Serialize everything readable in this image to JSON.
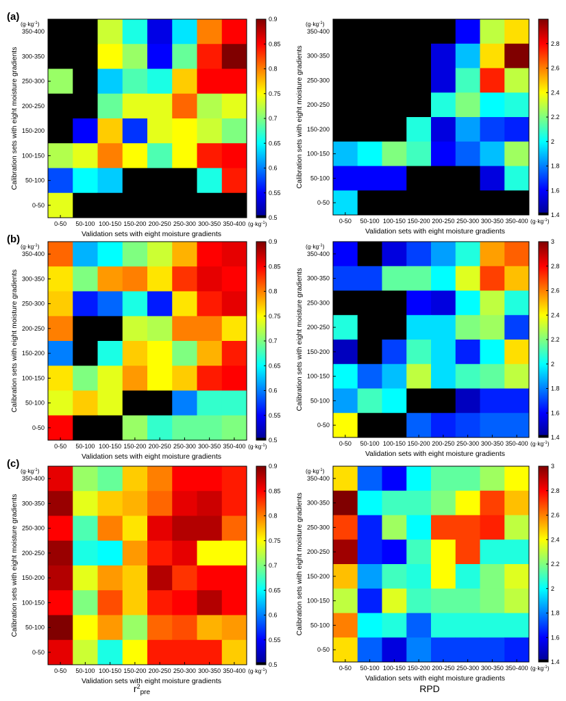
{
  "figure": {
    "unit": "(g·kg",
    "unit_sup": "-1",
    "unit_close": ")",
    "row_category_labels": [
      "350-400",
      "300-350",
      "250-300",
      "200-250",
      "150-200",
      "100-150",
      "50-100",
      "0-50"
    ],
    "col_category_labels": [
      "0-50",
      "50-100",
      "100-150",
      "150-200",
      "200-250",
      "250-300",
      "300-350",
      "350-400"
    ],
    "xlabel": "Validation sets with eight moisture gradients",
    "ylabel": "Calibration sets with eight moisture gradients",
    "bottom_label_left_base": "r",
    "bottom_label_left_sup": "2",
    "bottom_label_left_sub": "pre",
    "bottom_label_right": "RPD",
    "colormap": "jet",
    "masked_color": "#000000"
  },
  "chart_data": [
    {
      "panel_label": "(a)",
      "type": "heatmap",
      "metric": "r2pre",
      "colorbar_range": [
        0.5,
        0.9
      ],
      "colorbar_ticks": [
        "0.9",
        "0.85",
        "0.8",
        "0.75",
        "0.7",
        "0.65",
        "0.6",
        "0.55",
        "0.5"
      ],
      "values": [
        [
          null,
          null,
          0.73,
          0.66,
          0.54,
          0.64,
          0.8,
          0.85
        ],
        [
          null,
          null,
          0.75,
          0.71,
          0.55,
          0.69,
          0.84,
          0.9
        ],
        [
          0.71,
          null,
          0.63,
          0.68,
          0.66,
          0.77,
          0.85,
          0.85
        ],
        [
          null,
          null,
          0.69,
          0.74,
          0.74,
          0.81,
          0.72,
          0.74
        ],
        [
          null,
          0.55,
          0.77,
          0.57,
          0.74,
          0.75,
          0.73,
          0.7
        ],
        [
          0.72,
          0.74,
          0.8,
          0.75,
          0.68,
          0.75,
          0.84,
          0.85
        ],
        [
          0.58,
          0.65,
          0.63,
          null,
          null,
          null,
          0.66,
          0.84
        ],
        [
          0.74,
          null,
          null,
          null,
          null,
          null,
          null,
          null
        ]
      ]
    },
    {
      "panel_label": "",
      "type": "heatmap",
      "metric": "RPD",
      "colorbar_range": [
        1.4,
        3.0
      ],
      "colorbar_ticks": [
        "2.8",
        "2.6",
        "2.4",
        "2.2",
        "2",
        "1.8",
        "1.6",
        "1.4"
      ],
      "values": [
        [
          null,
          null,
          null,
          null,
          null,
          1.6,
          2.3,
          2.45
        ],
        [
          null,
          null,
          null,
          null,
          1.55,
          1.9,
          2.45,
          3.0
        ],
        [
          null,
          null,
          null,
          null,
          1.55,
          2.1,
          2.75,
          2.3
        ],
        [
          null,
          null,
          null,
          null,
          2.05,
          2.2,
          2.0,
          2.05
        ],
        [
          null,
          null,
          null,
          2.05,
          1.55,
          1.85,
          1.7,
          1.65
        ],
        [
          1.9,
          2.0,
          2.2,
          2.1,
          1.6,
          1.75,
          1.9,
          2.25
        ],
        [
          1.6,
          1.6,
          1.6,
          null,
          null,
          null,
          1.55,
          2.05
        ],
        [
          1.95,
          null,
          null,
          null,
          null,
          null,
          null,
          null
        ]
      ]
    },
    {
      "panel_label": "(b)",
      "type": "heatmap",
      "metric": "r2pre",
      "colorbar_range": [
        0.5,
        0.9
      ],
      "colorbar_ticks": [
        "0.9",
        "0.85",
        "0.8",
        "0.75",
        "0.7",
        "0.65",
        "0.6",
        "0.55",
        "0.5"
      ],
      "values": [
        [
          0.81,
          0.62,
          0.65,
          0.7,
          0.73,
          0.78,
          0.85,
          0.86
        ],
        [
          0.76,
          0.7,
          0.79,
          0.8,
          0.76,
          0.83,
          0.86,
          0.85
        ],
        [
          0.77,
          0.56,
          0.59,
          0.66,
          0.56,
          0.76,
          0.84,
          0.86
        ],
        [
          0.8,
          null,
          null,
          0.73,
          0.72,
          0.8,
          0.8,
          0.76
        ],
        [
          0.6,
          null,
          0.66,
          0.77,
          0.75,
          0.7,
          0.78,
          0.84
        ],
        [
          0.76,
          0.7,
          0.74,
          0.79,
          0.75,
          0.77,
          0.84,
          0.85
        ],
        [
          0.74,
          0.77,
          0.74,
          null,
          null,
          0.6,
          0.67,
          0.67
        ],
        [
          0.85,
          null,
          null,
          0.71,
          0.67,
          0.69,
          0.69,
          0.7
        ]
      ]
    },
    {
      "panel_label": "",
      "type": "heatmap",
      "metric": "RPD",
      "colorbar_range": [
        1.4,
        3.0
      ],
      "colorbar_ticks": [
        "3",
        "2.8",
        "2.6",
        "2.4",
        "2.2",
        "2",
        "1.8",
        "1.6",
        "1.4"
      ],
      "values": [
        [
          1.6,
          null,
          1.55,
          1.7,
          1.85,
          2.05,
          2.55,
          2.65
        ],
        [
          1.7,
          1.7,
          2.15,
          2.15,
          2.0,
          2.35,
          2.7,
          2.5
        ],
        [
          null,
          null,
          null,
          1.6,
          1.55,
          2.0,
          2.3,
          2.05
        ],
        [
          2.05,
          null,
          null,
          1.95,
          1.95,
          2.2,
          2.25,
          1.7
        ],
        [
          1.5,
          null,
          1.7,
          2.1,
          1.95,
          1.65,
          2.0,
          2.45
        ],
        [
          2.0,
          1.75,
          1.9,
          2.3,
          1.95,
          2.1,
          2.15,
          2.3
        ],
        [
          1.85,
          2.1,
          2.0,
          null,
          null,
          1.5,
          1.65,
          1.65
        ],
        [
          2.4,
          null,
          null,
          1.75,
          1.65,
          1.7,
          1.75,
          1.75
        ]
      ]
    },
    {
      "panel_label": "(c)",
      "type": "heatmap",
      "metric": "r2pre",
      "colorbar_range": [
        0.5,
        0.9
      ],
      "colorbar_ticks": [
        "0.9",
        "0.85",
        "0.8",
        "0.75",
        "0.7",
        "0.65",
        "0.6",
        "0.55",
        "0.5"
      ],
      "values": [
        [
          0.86,
          0.71,
          0.69,
          0.77,
          0.8,
          0.85,
          0.85,
          0.84
        ],
        [
          0.89,
          0.74,
          0.77,
          0.78,
          0.81,
          0.86,
          0.87,
          0.84
        ],
        [
          0.85,
          0.68,
          0.8,
          0.76,
          0.86,
          0.88,
          0.88,
          0.81
        ],
        [
          0.89,
          0.66,
          0.65,
          0.79,
          0.84,
          0.86,
          0.75,
          0.75
        ],
        [
          0.88,
          0.74,
          0.79,
          0.77,
          0.88,
          0.83,
          0.85,
          0.85
        ],
        [
          0.85,
          0.7,
          0.82,
          0.77,
          0.84,
          0.85,
          0.88,
          0.85
        ],
        [
          0.9,
          0.75,
          0.79,
          0.71,
          0.81,
          0.82,
          0.78,
          0.79
        ],
        [
          0.86,
          0.73,
          0.66,
          0.75,
          0.84,
          0.84,
          0.84,
          0.77
        ]
      ]
    },
    {
      "panel_label": "",
      "type": "heatmap",
      "metric": "RPD",
      "colorbar_range": [
        1.4,
        3.0
      ],
      "colorbar_ticks": [
        "3",
        "2.8",
        "2.6",
        "2.4",
        "2.2",
        "2",
        "1.8",
        "1.6",
        "1.4"
      ],
      "values": [
        [
          2.45,
          1.75,
          1.6,
          2.0,
          2.15,
          2.15,
          2.25,
          2.4
        ],
        [
          3.0,
          2.0,
          2.1,
          2.1,
          2.2,
          2.4,
          2.7,
          2.5
        ],
        [
          2.7,
          1.65,
          2.25,
          2.0,
          2.7,
          2.7,
          2.75,
          2.3
        ],
        [
          2.95,
          1.65,
          1.6,
          2.1,
          2.4,
          2.7,
          2.05,
          2.05
        ],
        [
          2.5,
          1.85,
          2.1,
          2.05,
          2.4,
          2.05,
          2.2,
          2.35
        ],
        [
          2.3,
          1.65,
          2.35,
          2.1,
          2.15,
          2.15,
          2.2,
          2.3
        ],
        [
          2.6,
          2.0,
          2.05,
          1.75,
          2.05,
          2.05,
          2.05,
          2.05
        ],
        [
          2.45,
          1.75,
          1.55,
          1.8,
          1.7,
          1.7,
          1.7,
          1.65
        ]
      ]
    }
  ]
}
